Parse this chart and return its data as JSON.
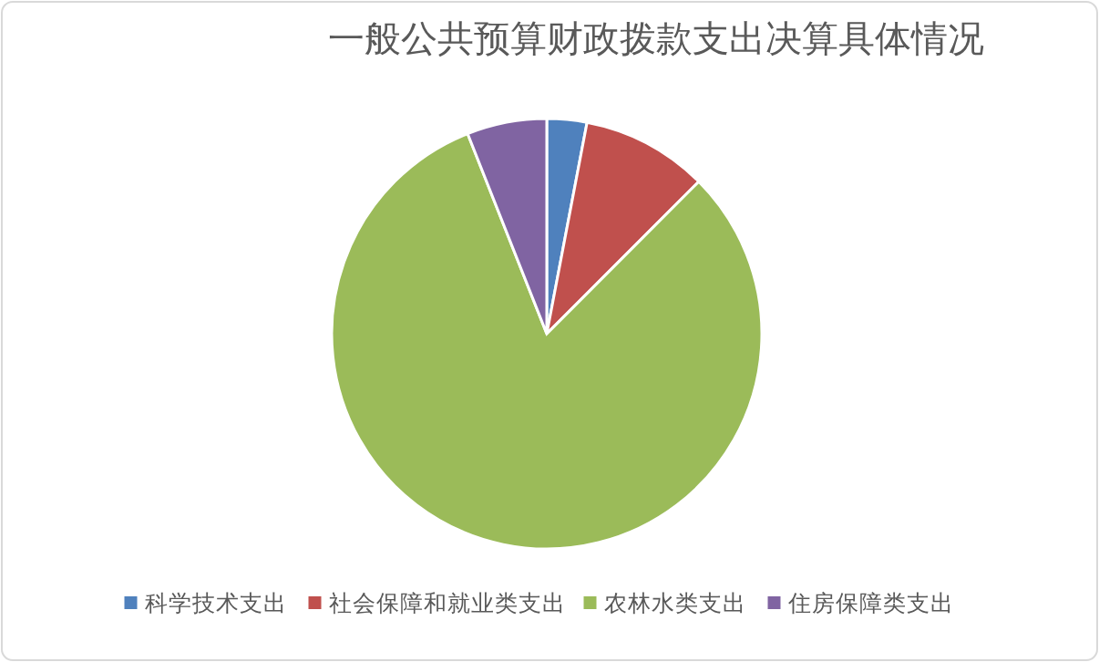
{
  "chart_data": {
    "type": "pie",
    "title": "一般公共预算财政拨款支出决算具体情况",
    "categories": [
      "科学技术支出",
      "社会保障和就业类支出",
      "农林水类支出",
      "住房保障类支出"
    ],
    "values": [
      3,
      9.5,
      81.5,
      6
    ],
    "colors": [
      "#4f81bd",
      "#c0504d",
      "#9bbb59",
      "#8064a2"
    ],
    "legend": "bottom"
  }
}
